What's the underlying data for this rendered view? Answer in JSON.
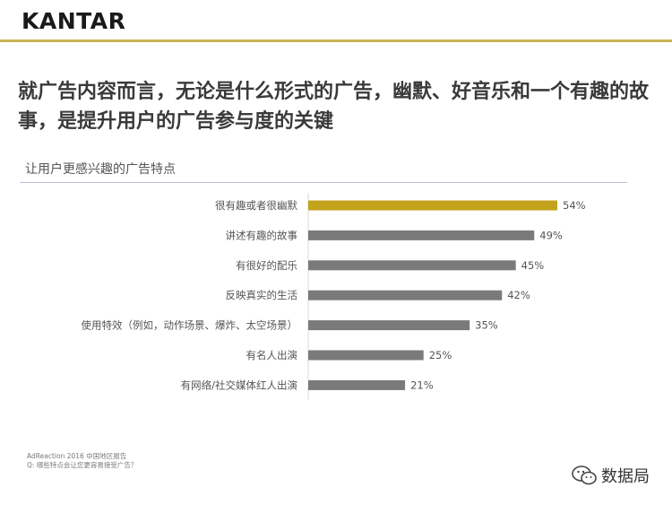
{
  "header": {
    "logo_text": "KANTAR",
    "headline": "就广告内容而言，无论是什么形式的广告，幽默、好音乐和一个有趣的故事，是提升用户的广告参与度的关键"
  },
  "chart_data": {
    "type": "bar",
    "orientation": "horizontal",
    "title": "让用户更感兴趣的广告特点",
    "categories": [
      "很有趣或者很幽默",
      "讲述有趣的故事",
      "有很好的配乐",
      "反映真实的生活",
      "使用特效（例如，动作场景、爆炸、太空场景）",
      "有名人出演",
      "有网络/社交媒体红人出演"
    ],
    "values": [
      54,
      49,
      45,
      42,
      35,
      25,
      21
    ],
    "value_labels": [
      "54%",
      "49%",
      "45%",
      "42%",
      "35%",
      "25%",
      "21%"
    ],
    "unit": "%",
    "xlim": [
      0,
      100
    ],
    "grid": false,
    "colors": {
      "highlight": "#c3a21c",
      "default": "#7a7a7a"
    }
  },
  "footer": {
    "source_line1": "AdReaction 2016 中国地区报告",
    "source_line2": "Q: 哪些特点会让您更容易接受广告？",
    "watermark_text": "数据局",
    "watermark_icon": "wechat-icon"
  }
}
